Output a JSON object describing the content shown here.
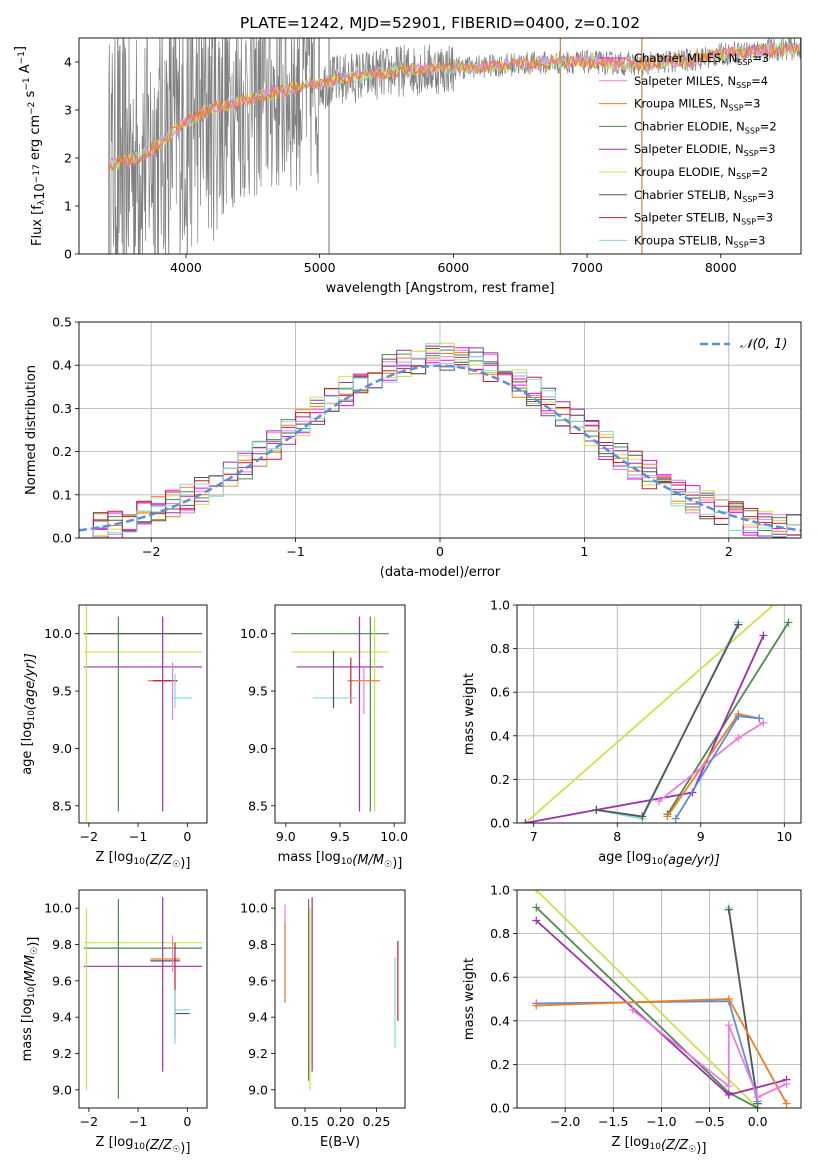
{
  "figure": {
    "title": "PLATE=1242, MJD=52901, FIBERID=0400, z=0.102"
  },
  "colors": {
    "chabrier_miles": "#ff00ff",
    "salpeter_miles": "#f07be0",
    "kroupa_miles": "#f07e22",
    "chabrier_elodie": "#4f8a4f",
    "salpeter_elodie": "#9b30b0",
    "kroupa_elodie": "#cfe04b",
    "chabrier_stelib": "#555555",
    "salpeter_stelib": "#c0202a",
    "kroupa_stelib": "#86d8e6",
    "data_spectrum": "#808080",
    "normal_curve": "#5b8fd8"
  },
  "chart_data": [
    {
      "id": "spectrum",
      "type": "line",
      "xlabel": "wavelength [Angstrom, rest frame]",
      "ylabel": "Flux [f",
      "ylabel_sub": "λ",
      "ylabel_rest": "10",
      "ylabel_exp": "−17",
      "ylabel_units": " erg cm",
      "ylabel_units2": " s",
      "ylabel_units3": " A",
      "xlim": [
        3200,
        8600
      ],
      "ylim": [
        0,
        4.5
      ],
      "xticks": [
        "4000",
        "5000",
        "6000",
        "7000",
        "8000"
      ],
      "yticks": [
        "0",
        "1",
        "2",
        "3",
        "4"
      ],
      "legend_position": "top-right",
      "legend": [
        {
          "name": "Chabrier MILES, N",
          "sub": "SSP",
          "rest": "=3"
        },
        {
          "name": "Salpeter MILES, N",
          "sub": "SSP",
          "rest": "=4"
        },
        {
          "name": "Kroupa MILES, N",
          "sub": "SSP",
          "rest": "=3"
        },
        {
          "name": "Chabrier ELODIE, N",
          "sub": "SSP",
          "rest": "=2"
        },
        {
          "name": "Salpeter ELODIE, N",
          "sub": "SSP",
          "rest": "=3"
        },
        {
          "name": "Kroupa ELODIE, N",
          "sub": "SSP",
          "rest": "=2"
        },
        {
          "name": "Chabrier STELIB, N",
          "sub": "SSP",
          "rest": "=3"
        },
        {
          "name": "Salpeter STELIB, N",
          "sub": "SSP",
          "rest": "=3"
        },
        {
          "name": "Kroupa STELIB, N",
          "sub": "SSP",
          "rest": "=3"
        }
      ],
      "continuum": {
        "x": [
          3420,
          3650,
          3800,
          4000,
          4200,
          4500,
          4800,
          5000,
          5300,
          5600,
          6000,
          6300,
          6600,
          7000,
          7400,
          7800,
          8100,
          8600
        ],
        "y": [
          1.85,
          2.0,
          2.3,
          2.75,
          3.05,
          3.25,
          3.45,
          3.55,
          3.7,
          3.82,
          3.88,
          3.92,
          3.98,
          4.0,
          3.95,
          4.05,
          4.2,
          4.3
        ]
      },
      "spikes": [
        {
          "x": 3490,
          "y": 0
        },
        {
          "x": 3530,
          "y": 0
        },
        {
          "x": 4010,
          "y": 0
        },
        {
          "x": 5070,
          "y": 0
        },
        {
          "x": 6800,
          "y": 0
        },
        {
          "x": 7410,
          "y": 0
        }
      ]
    },
    {
      "id": "residuals",
      "type": "histogram",
      "xlabel": "(data-model)/error",
      "ylabel": "Normed distribution",
      "xlim": [
        -2.5,
        2.5
      ],
      "ylim": [
        0,
        0.5
      ],
      "xticks": [
        "−2",
        "−1",
        "0",
        "1",
        "2"
      ],
      "yticks": [
        "0.0",
        "0.1",
        "0.2",
        "0.3",
        "0.4",
        "0.5"
      ],
      "legend_position": "top-right",
      "legend": [
        {
          "name": "𝒩(0, 1)"
        }
      ],
      "bin_width": 0.1,
      "bin_start": -2.5,
      "grid": true
    },
    {
      "id": "age_vs_Z",
      "type": "errorbar",
      "xlabel": "Z [log",
      "xlabel_sub": "10",
      "xlabel_rest": "(Z/Z",
      "xlabel_sun": "☉",
      "xlabel_end": ")]",
      "ylabel": "age  [log",
      "ylabel_sub": "10",
      "ylabel_rest": "(age/yr)]",
      "xlim": [
        -2.2,
        0.4
      ],
      "ylim": [
        8.35,
        10.25
      ],
      "xticks": [
        "−2",
        "−1",
        "0"
      ],
      "yticks": [
        "8.5",
        "9.0",
        "9.5",
        "10.0"
      ],
      "points": [
        {
          "series": "chabrier_elodie",
          "x": -0.9,
          "xerr": 1.2,
          "y": 10.0,
          "yerr": 0.0
        },
        {
          "series": "chabrier_stelib",
          "x": -0.9,
          "xerr": 1.2,
          "y": 10.0,
          "yerr": 0.0
        },
        {
          "series": "kroupa_elodie",
          "x": -0.9,
          "xerr": 1.2,
          "y": 9.84,
          "yerr": 0.0
        },
        {
          "series": "salpeter_elodie",
          "x": -0.9,
          "xerr": 1.2,
          "y": 9.71,
          "yerr": 0.0
        },
        {
          "series": "chabrier_elodie",
          "x": -1.4,
          "xerr": 0.0,
          "y": 9.3,
          "yerr": 0.85
        },
        {
          "series": "salpeter_elodie",
          "x": -0.5,
          "xerr": 0.0,
          "y": 9.3,
          "yerr": 0.85
        },
        {
          "series": "kroupa_elodie",
          "x": -2.05,
          "xerr": 0.0,
          "y": 9.3,
          "yerr": 1.4
        },
        {
          "series": "kroupa_miles",
          "x": -0.5,
          "xerr": 0.3,
          "y": 9.59,
          "yerr": 0.0
        },
        {
          "series": "salpeter_stelib",
          "x": -0.45,
          "xerr": 0.25,
          "y": 9.59,
          "yerr": 0.0
        },
        {
          "series": "salpeter_miles",
          "x": -0.3,
          "xerr": 0.0,
          "y": 9.5,
          "yerr": 0.25
        },
        {
          "series": "kroupa_stelib",
          "x": -0.1,
          "xerr": 0.2,
          "y": 9.44,
          "yerr": 0.0
        },
        {
          "series": "kroupa_stelib",
          "x": -0.25,
          "xerr": 0.0,
          "y": 9.5,
          "yerr": 0.15
        }
      ]
    },
    {
      "id": "age_vs_mass",
      "type": "errorbar",
      "xlabel": "mass [log",
      "xlabel_sub": "10",
      "xlabel_rest": "(M/M",
      "xlabel_sun": "☉",
      "xlabel_end": ")]",
      "xlim": [
        8.9,
        10.1
      ],
      "ylim": [
        8.35,
        10.25
      ],
      "xticks": [
        "9.0",
        "9.5",
        "10.0"
      ],
      "yticks": [
        "8.5",
        "9.0",
        "9.5",
        "10.0"
      ],
      "points": [
        {
          "series": "chabrier_elodie",
          "x": 9.5,
          "xerr": 0.45,
          "y": 10.0,
          "yerr": 0.0
        },
        {
          "series": "kroupa_elodie",
          "x": 9.5,
          "xerr": 0.45,
          "y": 9.84,
          "yerr": 0.0
        },
        {
          "series": "salpeter_elodie",
          "x": 9.5,
          "xerr": 0.4,
          "y": 9.71,
          "yerr": 0.0
        },
        {
          "series": "salpeter_elodie",
          "x": 9.68,
          "xerr": 0.0,
          "y": 9.3,
          "yerr": 0.85
        },
        {
          "series": "kroupa_elodie",
          "x": 9.82,
          "xerr": 0.0,
          "y": 9.3,
          "yerr": 0.85
        },
        {
          "series": "chabrier_elodie",
          "x": 9.78,
          "xerr": 0.0,
          "y": 9.3,
          "yerr": 0.85
        },
        {
          "series": "kroupa_miles",
          "x": 9.72,
          "xerr": 0.15,
          "y": 9.59,
          "yerr": 0.0
        },
        {
          "series": "salpeter_stelib",
          "x": 9.6,
          "xerr": 0.0,
          "y": 9.59,
          "yerr": 0.2
        },
        {
          "series": "kroupa_stelib",
          "x": 9.45,
          "xerr": 0.2,
          "y": 9.44,
          "yerr": 0.0
        },
        {
          "series": "chabrier_stelib",
          "x": 9.44,
          "xerr": 0.0,
          "y": 9.6,
          "yerr": 0.25
        },
        {
          "series": "salpeter_miles",
          "x": 9.72,
          "xerr": 0.0,
          "y": 9.5,
          "yerr": 0.2
        }
      ]
    },
    {
      "id": "massweight_vs_age",
      "type": "line",
      "xlabel": "age  [log",
      "xlabel_sub": "10",
      "xlabel_rest": "(age/yr)]",
      "ylabel": "mass weight",
      "xlim": [
        6.8,
        10.2
      ],
      "ylim": [
        0,
        1.0
      ],
      "xticks": [
        "7",
        "8",
        "9",
        "10"
      ],
      "yticks": [
        "0.0",
        "0.2",
        "0.4",
        "0.6",
        "0.8",
        "1.0"
      ],
      "grid": true,
      "series": [
        {
          "key": "kroupa_elodie",
          "x": [
            6.9,
            9.9
          ],
          "y": [
            0.0,
            1.01
          ]
        },
        {
          "key": "chabrier_elodie",
          "x": [
            8.6,
            10.05
          ],
          "y": [
            0.04,
            0.92
          ]
        },
        {
          "key": "salpeter_elodie",
          "x": [
            6.9,
            7.75,
            8.9,
            9.75
          ],
          "y": [
            0.0,
            0.06,
            0.14,
            0.86
          ]
        },
        {
          "key": "kroupa_stelib",
          "x": [
            7.75,
            8.3,
            9.45
          ],
          "y": [
            0.06,
            0.02,
            0.92
          ]
        },
        {
          "key": "chabrier_stelib",
          "x": [
            7.75,
            8.3,
            9.45
          ],
          "y": [
            0.06,
            0.03,
            0.91
          ]
        },
        {
          "key": "kroupa_miles",
          "x": [
            8.6,
            9.45,
            9.7
          ],
          "y": [
            0.03,
            0.5,
            0.48
          ]
        },
        {
          "key": "salpeter_miles",
          "x": [
            8.5,
            9.45,
            9.75
          ],
          "y": [
            0.1,
            0.39,
            0.46
          ]
        },
        {
          "key": "normal_curve",
          "x": [
            8.7,
            9.45,
            9.7
          ],
          "y": [
            0.02,
            0.49,
            0.48
          ]
        }
      ]
    },
    {
      "id": "mass_vs_Z",
      "type": "errorbar",
      "xlabel": "Z [log",
      "xlabel_sub": "10",
      "xlabel_rest": "(Z/Z",
      "xlabel_sun": "☉",
      "xlabel_end": ")]",
      "ylabel": "mass [log",
      "ylabel_sub": "10",
      "ylabel_rest": "(M/M",
      "ylabel_sun": "☉",
      "ylabel_end": ")]",
      "xlim": [
        -2.2,
        0.4
      ],
      "ylim": [
        8.9,
        10.1
      ],
      "xticks": [
        "−2",
        "−1",
        "0"
      ],
      "yticks": [
        "9.0",
        "9.2",
        "9.4",
        "9.6",
        "9.8",
        "10.0"
      ],
      "points": [
        {
          "series": "kroupa_elodie",
          "x": -0.9,
          "xerr": 1.2,
          "y": 9.81,
          "yerr": 0.0
        },
        {
          "series": "chabrier_elodie",
          "x": -0.9,
          "xerr": 1.2,
          "y": 9.78,
          "yerr": 0.0
        },
        {
          "series": "salpeter_elodie",
          "x": -0.9,
          "xerr": 1.2,
          "y": 9.68,
          "yerr": 0.0
        },
        {
          "series": "kroupa_elodie",
          "x": -2.05,
          "xerr": 0.0,
          "y": 9.5,
          "yerr": 0.5
        },
        {
          "series": "chabrier_elodie",
          "x": -1.4,
          "xerr": 0.0,
          "y": 9.5,
          "yerr": 0.55
        },
        {
          "series": "salpeter_elodie",
          "x": -0.5,
          "xerr": 0.0,
          "y": 9.58,
          "yerr": 0.48
        },
        {
          "series": "kroupa_miles",
          "x": -0.45,
          "xerr": 0.3,
          "y": 9.72,
          "yerr": 0.0
        },
        {
          "series": "chabrier_stelib",
          "x": -0.45,
          "xerr": 0.3,
          "y": 9.71,
          "yerr": 0.0
        },
        {
          "series": "salpeter_miles",
          "x": -0.3,
          "xerr": 0.0,
          "y": 9.75,
          "yerr": 0.1
        },
        {
          "series": "kroupa_stelib",
          "x": -0.1,
          "xerr": 0.15,
          "y": 9.44,
          "yerr": 0.0
        },
        {
          "series": "chabrier_stelib",
          "x": -0.1,
          "xerr": 0.15,
          "y": 9.42,
          "yerr": 0.0
        },
        {
          "series": "salpeter_stelib",
          "x": -0.25,
          "xerr": 0.0,
          "y": 9.55,
          "yerr": 0.26
        },
        {
          "series": "kroupa_stelib",
          "x": -0.25,
          "xerr": 0.0,
          "y": 9.4,
          "yerr": 0.15
        }
      ]
    },
    {
      "id": "mass_vs_ebv",
      "type": "errorbar",
      "xlabel": "E(B-V)",
      "xlim": [
        0.108,
        0.29
      ],
      "ylim": [
        8.9,
        10.1
      ],
      "xticks": [
        "0.15",
        "0.20",
        "0.25"
      ],
      "yticks": [
        "9.0",
        "9.2",
        "9.4",
        "9.6",
        "9.8",
        "10.0"
      ],
      "points": [
        {
          "series": "salpeter_miles",
          "x": 0.122,
          "xerr": 0.0,
          "y": 9.75,
          "yerr": 0.27
        },
        {
          "series": "kroupa_miles",
          "x": 0.122,
          "xerr": 0.0,
          "y": 9.7,
          "yerr": 0.22
        },
        {
          "series": "chabrier_elodie",
          "x": 0.155,
          "xerr": 0.0,
          "y": 9.55,
          "yerr": 0.5
        },
        {
          "series": "kroupa_elodie",
          "x": 0.157,
          "xerr": 0.0,
          "y": 9.5,
          "yerr": 0.5
        },
        {
          "series": "salpeter_elodie",
          "x": 0.16,
          "xerr": 0.0,
          "y": 9.58,
          "yerr": 0.48
        },
        {
          "series": "kroupa_stelib",
          "x": 0.276,
          "xerr": 0.0,
          "y": 9.48,
          "yerr": 0.25
        },
        {
          "series": "salpeter_stelib",
          "x": 0.28,
          "xerr": 0.0,
          "y": 9.6,
          "yerr": 0.22
        }
      ]
    },
    {
      "id": "massweight_vs_Z",
      "type": "line",
      "xlabel": "Z [log",
      "xlabel_sub": "10",
      "xlabel_rest": "(Z/Z",
      "xlabel_sun": "☉",
      "xlabel_end": ")]",
      "ylabel": "mass weight",
      "xlim": [
        -2.5,
        0.45
      ],
      "ylim": [
        0,
        1.0
      ],
      "xticks": [
        "−2.0",
        "−1.5",
        "−1.0",
        "−0.5",
        "0.0"
      ],
      "yticks": [
        "0.0",
        "0.2",
        "0.4",
        "0.6",
        "0.8",
        "1.0"
      ],
      "grid": true,
      "series": [
        {
          "key": "kroupa_elodie",
          "x": [
            -2.3,
            0.0
          ],
          "y": [
            1.0,
            0.0
          ]
        },
        {
          "key": "chabrier_elodie",
          "x": [
            -2.3,
            -0.3,
            0.0
          ],
          "y": [
            0.92,
            0.07,
            0.0
          ]
        },
        {
          "key": "salpeter_elodie",
          "x": [
            -2.3,
            -0.3,
            0.3
          ],
          "y": [
            0.86,
            0.06,
            0.13
          ]
        },
        {
          "key": "kroupa_stelib",
          "x": [
            -0.3,
            0.0
          ],
          "y": [
            0.92,
            0.02
          ]
        },
        {
          "key": "chabrier_stelib",
          "x": [
            -0.3,
            0.0
          ],
          "y": [
            0.91,
            0.02
          ]
        },
        {
          "key": "normal_curve",
          "x": [
            -2.3,
            -0.3,
            0.0
          ],
          "y": [
            0.48,
            0.49,
            0.03
          ]
        },
        {
          "key": "kroupa_miles",
          "x": [
            -2.3,
            -0.3,
            0.3
          ],
          "y": [
            0.47,
            0.5,
            0.02
          ]
        },
        {
          "key": "salpeter_miles",
          "x": [
            -1.3,
            -0.3,
            -0.3,
            0.0,
            0.3
          ],
          "y": [
            0.45,
            0.1,
            0.38,
            0.05,
            0.11
          ]
        }
      ]
    }
  ]
}
